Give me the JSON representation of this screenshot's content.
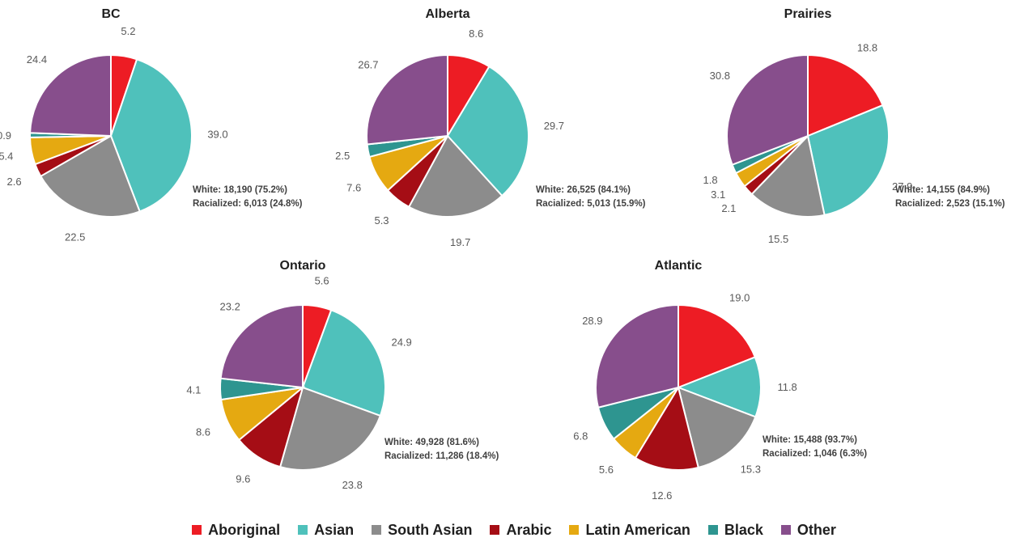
{
  "legend": [
    {
      "label": "Aboriginal",
      "color": "#ED1C24"
    },
    {
      "label": "Asian",
      "color": "#4FC1BB"
    },
    {
      "label": "South Asian",
      "color": "#8C8C8C"
    },
    {
      "label": "Arabic",
      "color": "#A50D15"
    },
    {
      "label": "Latin American",
      "color": "#E5A911"
    },
    {
      "label": "Black",
      "color": "#2E9590"
    },
    {
      "label": "Other",
      "color": "#874E8C"
    }
  ],
  "chart_data": [
    {
      "type": "pie",
      "title": "BC",
      "categories": [
        "Aboriginal",
        "Asian",
        "South Asian",
        "Arabic",
        "Latin American",
        "Black",
        "Other"
      ],
      "values": [
        5.2,
        39.0,
        22.5,
        2.6,
        5.4,
        0.9,
        24.4
      ],
      "value_labels": [
        "5.2",
        "39.0",
        "22.5",
        "2.6",
        "5.4",
        "0.9",
        "24.4"
      ],
      "annotation": [
        "White: 18,190 (75.2%)",
        "Racialized: 6,013 (24.8%)"
      ]
    },
    {
      "type": "pie",
      "title": "Alberta",
      "categories": [
        "Aboriginal",
        "Asian",
        "South Asian",
        "Arabic",
        "Latin American",
        "Black",
        "Other"
      ],
      "values": [
        8.6,
        29.7,
        19.7,
        5.3,
        7.6,
        2.5,
        26.7
      ],
      "value_labels": [
        "8.6",
        "29.7",
        "19.7",
        "5.3",
        "7.6",
        "2.5",
        "26.7"
      ],
      "annotation": [
        "White: 26,525 (84.1%)",
        "Racialized: 5,013 (15.9%)"
      ]
    },
    {
      "type": "pie",
      "title": "Prairies",
      "categories": [
        "Aboriginal",
        "Asian",
        "South Asian",
        "Arabic",
        "Latin American",
        "Black",
        "Other"
      ],
      "values": [
        18.8,
        27.9,
        15.5,
        2.1,
        3.1,
        1.8,
        30.8
      ],
      "value_labels": [
        "18.8",
        "27.9",
        "15.5",
        "2.1",
        "3.1",
        "1.8",
        "30.8"
      ],
      "annotation": [
        "White: 14,155 (84.9%)",
        "Racialized: 2,523 (15.1%)"
      ]
    },
    {
      "type": "pie",
      "title": "Ontario",
      "categories": [
        "Aboriginal",
        "Asian",
        "South Asian",
        "Arabic",
        "Latin American",
        "Black",
        "Other"
      ],
      "values": [
        5.6,
        24.9,
        23.8,
        9.6,
        8.6,
        4.1,
        23.2
      ],
      "value_labels": [
        "5.6",
        "24.9",
        "23.8",
        "9.6",
        "8.6",
        "4.1",
        "23.2"
      ],
      "annotation": [
        "White: 49,928 (81.6%)",
        "Racialized: 11,286 (18.4%)"
      ]
    },
    {
      "type": "pie",
      "title": "Atlantic",
      "categories": [
        "Aboriginal",
        "Asian",
        "South Asian",
        "Arabic",
        "Latin American",
        "Black",
        "Other"
      ],
      "values": [
        19.0,
        11.8,
        15.3,
        12.6,
        5.6,
        6.8,
        28.9
      ],
      "value_labels": [
        "19.0",
        "11.8",
        "15.3",
        "12.6",
        "5.6",
        "6.8",
        "28.9"
      ],
      "annotation": [
        "White: 15,488 (93.7%)",
        "Racialized: 1,046 (6.3%)"
      ]
    }
  ]
}
